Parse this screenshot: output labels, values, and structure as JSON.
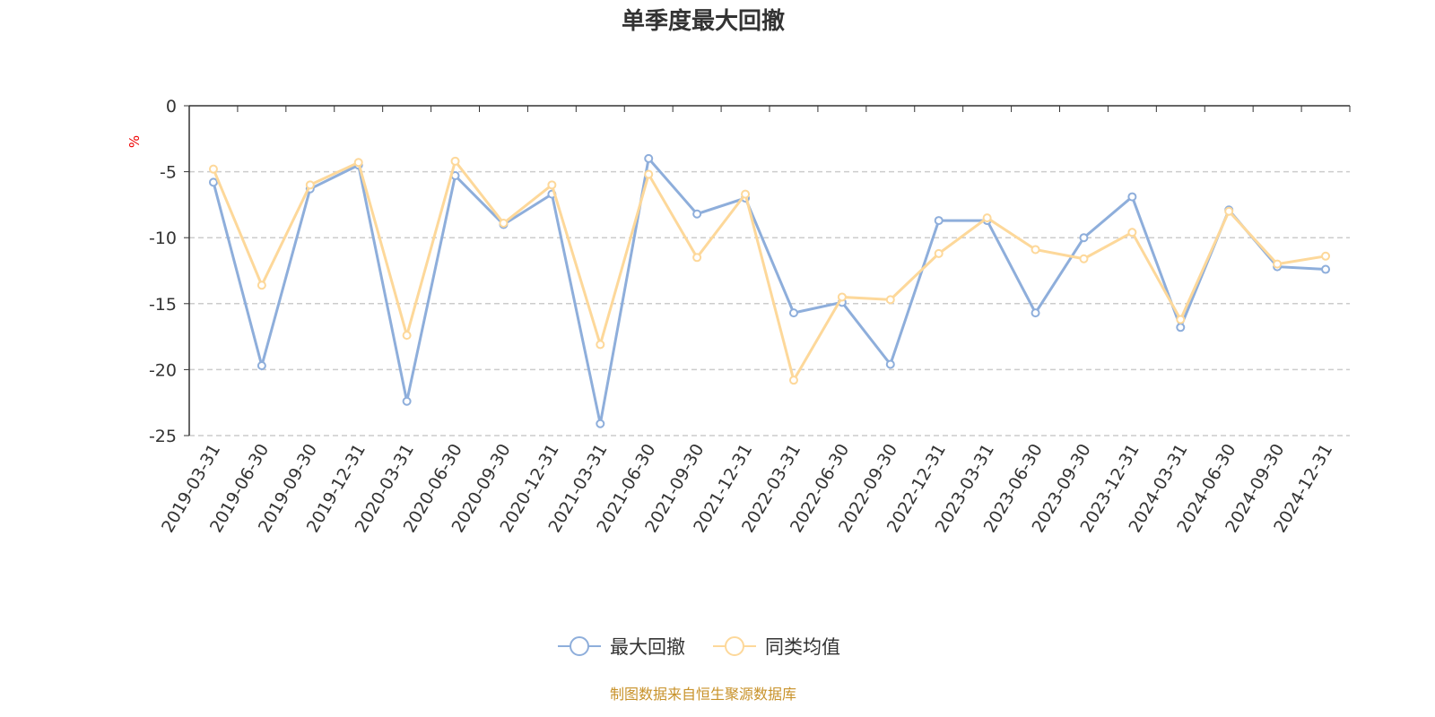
{
  "chart_data": {
    "type": "line",
    "title": "单季度最大回撤",
    "ylabel": "%",
    "xlabel": "",
    "ylim": [
      -25,
      0
    ],
    "yticks": [
      0,
      -5,
      -10,
      -15,
      -20,
      -25
    ],
    "grid": true,
    "legend_position": "bottom",
    "categories": [
      "2019-03-31",
      "2019-06-30",
      "2019-09-30",
      "2019-12-31",
      "2020-03-31",
      "2020-06-30",
      "2020-09-30",
      "2020-12-31",
      "2021-03-31",
      "2021-06-30",
      "2021-09-30",
      "2021-12-31",
      "2022-03-31",
      "2022-06-30",
      "2022-09-30",
      "2022-12-31",
      "2023-03-31",
      "2023-06-30",
      "2023-09-30",
      "2023-12-31",
      "2024-03-31",
      "2024-06-30",
      "2024-09-30",
      "2024-12-31"
    ],
    "series": [
      {
        "name": "最大回撤",
        "color": "#8eaedb",
        "values": [
          -5.8,
          -19.7,
          -6.3,
          -4.5,
          -22.4,
          -5.3,
          -9.0,
          -6.7,
          -24.1,
          -4.0,
          -8.2,
          -7.0,
          -15.7,
          -14.9,
          -19.6,
          -8.7,
          -8.7,
          -15.7,
          -10.0,
          -6.9,
          -16.8,
          -7.9,
          -12.2,
          -12.4
        ]
      },
      {
        "name": "同类均值",
        "color": "#fdd89a",
        "values": [
          -4.8,
          -13.6,
          -6.0,
          -4.3,
          -17.4,
          -4.2,
          -8.9,
          -6.0,
          -18.1,
          -5.2,
          -11.5,
          -6.7,
          -20.8,
          -14.5,
          -14.7,
          -11.2,
          -8.5,
          -10.9,
          -11.6,
          -9.6,
          -16.2,
          -8.0,
          -12.0,
          -11.4
        ]
      }
    ],
    "source": "制图数据来自恒生聚源数据库"
  }
}
